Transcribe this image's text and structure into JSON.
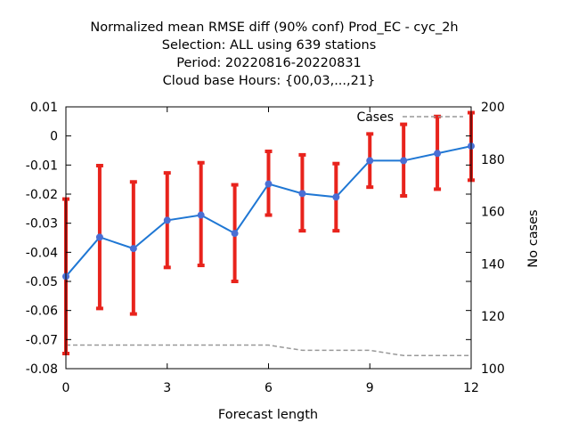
{
  "chart_data": {
    "type": "line",
    "title_lines": [
      "Normalized mean RMSE diff (90% conf) Prod_EC - cyc_2h",
      "Selection: ALL using   639 stations",
      "Period: 20220816-20220831",
      "Cloud base   Hours: {00,03,...,21}"
    ],
    "xlabel": "Forecast length",
    "ylabel": "",
    "y2label": "No cases",
    "xlim": [
      0,
      12
    ],
    "ylim": [
      -0.08,
      0.01
    ],
    "y2lim": [
      100,
      200
    ],
    "xticks": [
      "0",
      "3",
      "6",
      "9",
      "12"
    ],
    "yticks": [
      "0.01",
      "0",
      "-0.01",
      "-0.02",
      "-0.03",
      "-0.04",
      "-0.05",
      "-0.06",
      "-0.07",
      "-0.08"
    ],
    "y2ticks": [
      "200",
      "180",
      "160",
      "140",
      "120",
      "100"
    ],
    "grid": false,
    "legend_label": "Cases",
    "legend_position": "top-right",
    "colors": {
      "line": "#1f77d4",
      "marker": "#4a6fd4",
      "errorbar": "#e8231c",
      "cases": "#999999"
    },
    "series": [
      {
        "x": [
          0,
          1,
          2,
          3,
          4,
          5,
          6,
          7,
          8,
          9,
          10,
          11,
          12
        ],
        "values": [
          -0.0483,
          -0.0348,
          -0.0387,
          -0.029,
          -0.0272,
          -0.0335,
          -0.0165,
          -0.0198,
          -0.021,
          -0.0085,
          -0.0085,
          -0.006,
          -0.0035
        ],
        "err_low": [
          -0.0748,
          -0.0593,
          -0.0612,
          -0.0452,
          -0.0445,
          -0.05,
          -0.0272,
          -0.0326,
          -0.0326,
          -0.0176,
          -0.0206,
          -0.0183,
          -0.0152
        ],
        "err_high": [
          -0.0217,
          -0.0102,
          -0.0158,
          -0.0127,
          -0.0092,
          -0.0168,
          -0.0053,
          -0.0065,
          -0.0095,
          0.0007,
          0.004,
          0.0067,
          0.008
        ]
      },
      {
        "name": "Cases",
        "x": [
          0,
          1,
          2,
          3,
          4,
          5,
          6,
          7,
          8,
          9,
          10,
          11,
          12
        ],
        "values": [
          109,
          109,
          109,
          109,
          109,
          109,
          109,
          107,
          107,
          107,
          105,
          105,
          105
        ],
        "top_values": [
          197,
          197,
          197,
          197,
          197,
          197,
          197,
          197,
          197,
          197,
          197,
          197,
          198
        ]
      }
    ]
  }
}
